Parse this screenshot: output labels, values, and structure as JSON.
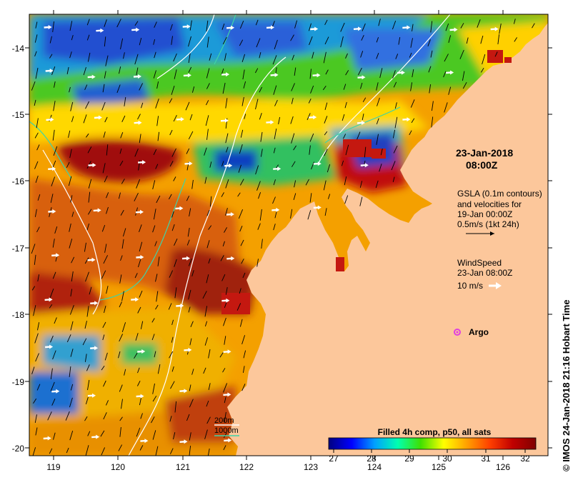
{
  "map": {
    "lon_ticks": [
      "119",
      "120",
      "121",
      "122",
      "123",
      "124",
      "125",
      "126"
    ],
    "lat_ticks": [
      "-14",
      "-15",
      "-16",
      "-17",
      "-18",
      "-19",
      "-20"
    ],
    "colors": {
      "land": "#fcc79b",
      "accent_white_arrows": "#ffffff",
      "contour_200m": "#ffffff",
      "contour_1000m": "#3fd3a8",
      "argo_marker": "#e040e0"
    }
  },
  "annotations": {
    "date": "23-Jan-2018",
    "time": "08:00Z",
    "gsla_lines": [
      "GSLA (0.1m contours)",
      "and velocities for",
      "19-Jan 00:00Z",
      "0.5m/s (1kt 24h)"
    ],
    "wind_lines": [
      "WindSpeed",
      "23-Jan 08:00Z"
    ],
    "wind_scale": "10 m/s",
    "argo_label": "Argo",
    "contour_200": "200m",
    "contour_1000": "1000m"
  },
  "colorbar": {
    "title": "Filled 4h comp, p50, all sats",
    "ticks": [
      "27",
      "28",
      "29",
      "30",
      "31",
      "32"
    ],
    "range": [
      27,
      32.5
    ],
    "stops": [
      "#000080",
      "#0000ff",
      "#00a0ff",
      "#00ffb0",
      "#40e000",
      "#ffff00",
      "#ffa000",
      "#ff4000",
      "#c00000",
      "#800000"
    ]
  },
  "side_label": "© IMOS 24-Jan-2018 21:16 Hobart Time"
}
